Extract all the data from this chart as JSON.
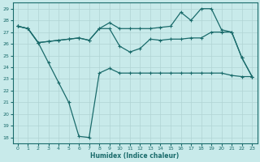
{
  "xlabel": "Humidex (Indice chaleur)",
  "bg_color": "#c8eaea",
  "grid_color": "#b0d4d4",
  "line_color": "#1a6b6b",
  "xlim": [
    -0.5,
    23.5
  ],
  "ylim": [
    17.5,
    29.5
  ],
  "xticks": [
    0,
    1,
    2,
    3,
    4,
    5,
    6,
    7,
    8,
    9,
    10,
    11,
    12,
    13,
    14,
    15,
    16,
    17,
    18,
    19,
    20,
    21,
    22,
    23
  ],
  "yticks": [
    18,
    19,
    20,
    21,
    22,
    23,
    24,
    25,
    26,
    27,
    28,
    29
  ],
  "line1_x": [
    0,
    1,
    2,
    3,
    4,
    5,
    6,
    7,
    8,
    9,
    10,
    11,
    12,
    13,
    14,
    15,
    16,
    17,
    18,
    19,
    20,
    21,
    22,
    23
  ],
  "line1_y": [
    27.5,
    27.3,
    26.1,
    24.4,
    22.7,
    21.0,
    18.1,
    18.0,
    23.5,
    23.9,
    23.5,
    23.5,
    23.5,
    23.5,
    23.5,
    23.5,
    23.5,
    23.5,
    23.5,
    23.5,
    23.5,
    23.3,
    23.2,
    23.2
  ],
  "line2_x": [
    0,
    1,
    2,
    3,
    4,
    5,
    6,
    7,
    8,
    9,
    10,
    11,
    12,
    13,
    14,
    15,
    16,
    17,
    18,
    19,
    20,
    21,
    22,
    23
  ],
  "line2_y": [
    27.5,
    27.3,
    26.1,
    26.2,
    26.3,
    26.4,
    26.5,
    26.3,
    27.3,
    27.3,
    25.8,
    25.3,
    25.6,
    26.4,
    26.3,
    26.4,
    26.4,
    26.5,
    26.5,
    27.0,
    27.0,
    27.0,
    24.8,
    23.2
  ],
  "line3_x": [
    0,
    1,
    2,
    3,
    4,
    5,
    6,
    7,
    8,
    9,
    10,
    11,
    12,
    13,
    14,
    15,
    16,
    17,
    18,
    19,
    20,
    21,
    22,
    23
  ],
  "line3_y": [
    27.5,
    27.3,
    26.1,
    26.2,
    26.3,
    26.4,
    26.5,
    26.3,
    27.3,
    27.8,
    27.3,
    27.3,
    27.3,
    27.3,
    27.4,
    27.5,
    28.7,
    28.0,
    29.0,
    29.0,
    27.2,
    27.0,
    24.8,
    23.2
  ]
}
